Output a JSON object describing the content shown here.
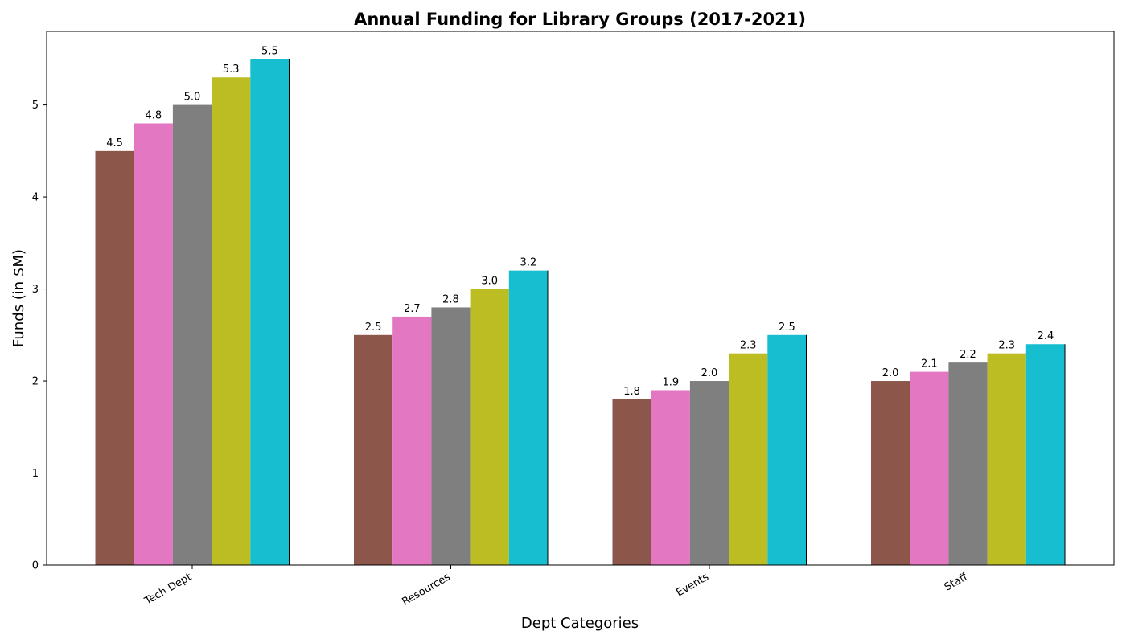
{
  "chart_data": {
    "type": "bar",
    "title": "Annual Funding for Library Groups (2017-2021)",
    "xlabel": "Dept Categories",
    "ylabel": "Funds (in $M)",
    "categories": [
      "Tech Dept",
      "Resources",
      "Events",
      "Staff"
    ],
    "ylim": [
      0,
      5.8
    ],
    "yticks": [
      "0",
      "1",
      "2",
      "3",
      "4",
      "5"
    ],
    "grid": false,
    "legend": "none",
    "colors": [
      "#8c564b",
      "#e377c2",
      "#7f7f7f",
      "#bcbd22",
      "#17becf"
    ],
    "series": [
      {
        "values": [
          4.5,
          2.5,
          1.8,
          2.0
        ]
      },
      {
        "values": [
          4.8,
          2.7,
          1.9,
          2.1
        ]
      },
      {
        "values": [
          5.0,
          2.8,
          2.0,
          2.2
        ]
      },
      {
        "values": [
          5.3,
          3.0,
          2.3,
          2.3
        ]
      },
      {
        "values": [
          5.5,
          3.2,
          2.5,
          2.4
        ]
      }
    ]
  }
}
